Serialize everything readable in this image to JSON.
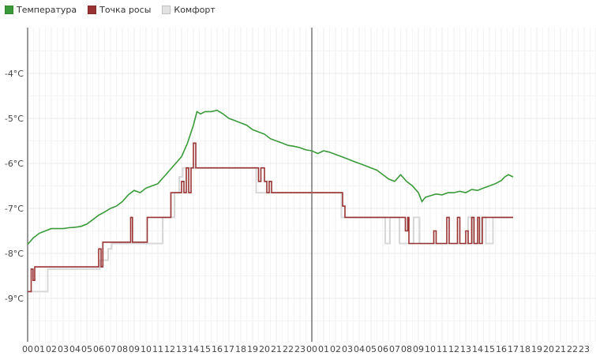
{
  "chart_data": {
    "type": "line",
    "title": "",
    "xlabel": "",
    "ylabel": "",
    "legend_position": "top-left",
    "grid": true,
    "y_ticks": [
      {
        "value": -4,
        "label": "-4°C"
      },
      {
        "value": -5,
        "label": "-5°C"
      },
      {
        "value": -6,
        "label": "-6°C"
      },
      {
        "value": -7,
        "label": "-7°C"
      },
      {
        "value": -8,
        "label": "-8°C"
      },
      {
        "value": -9,
        "label": "-9°C"
      }
    ],
    "ylim": [
      -10,
      -3
    ],
    "x_unit": "hours since start of first day",
    "xlim": [
      0,
      48
    ],
    "x_ticks": [
      "00",
      "01",
      "02",
      "03",
      "04",
      "05",
      "06",
      "07",
      "08",
      "09",
      "10",
      "11",
      "12",
      "13",
      "14",
      "15",
      "16",
      "17",
      "18",
      "19",
      "20",
      "21",
      "22",
      "23",
      "00",
      "01",
      "02",
      "03",
      "04",
      "05",
      "06",
      "07",
      "08",
      "09",
      "10",
      "11",
      "12",
      "13",
      "14",
      "15",
      "16",
      "17",
      "18",
      "19",
      "20",
      "21",
      "22",
      "23"
    ],
    "day_boundaries": [
      0,
      24
    ],
    "series": [
      {
        "name": "Температура",
        "color": "#3a9a3a",
        "kind": "line",
        "points": [
          [
            0,
            -7.8
          ],
          [
            0.5,
            -7.65
          ],
          [
            1,
            -7.55
          ],
          [
            1.5,
            -7.5
          ],
          [
            2,
            -7.45
          ],
          [
            2.5,
            -7.45
          ],
          [
            3,
            -7.45
          ],
          [
            3.5,
            -7.43
          ],
          [
            4,
            -7.42
          ],
          [
            4.5,
            -7.4
          ],
          [
            5,
            -7.35
          ],
          [
            5.5,
            -7.25
          ],
          [
            6,
            -7.15
          ],
          [
            6.5,
            -7.08
          ],
          [
            7,
            -7.0
          ],
          [
            7.5,
            -6.95
          ],
          [
            8,
            -6.85
          ],
          [
            8.5,
            -6.7
          ],
          [
            9,
            -6.6
          ],
          [
            9.5,
            -6.65
          ],
          [
            10,
            -6.55
          ],
          [
            10.5,
            -6.5
          ],
          [
            11,
            -6.45
          ],
          [
            11.5,
            -6.3
          ],
          [
            12,
            -6.15
          ],
          [
            12.5,
            -6.0
          ],
          [
            13,
            -5.85
          ],
          [
            13.5,
            -5.55
          ],
          [
            14,
            -5.15
          ],
          [
            14.3,
            -4.85
          ],
          [
            14.6,
            -4.9
          ],
          [
            15,
            -4.85
          ],
          [
            15.5,
            -4.85
          ],
          [
            16,
            -4.82
          ],
          [
            16.5,
            -4.9
          ],
          [
            17,
            -5.0
          ],
          [
            17.5,
            -5.05
          ],
          [
            18,
            -5.1
          ],
          [
            18.5,
            -5.15
          ],
          [
            19,
            -5.25
          ],
          [
            19.5,
            -5.3
          ],
          [
            20,
            -5.35
          ],
          [
            20.5,
            -5.45
          ],
          [
            21,
            -5.5
          ],
          [
            21.5,
            -5.55
          ],
          [
            22,
            -5.6
          ],
          [
            22.5,
            -5.62
          ],
          [
            23,
            -5.65
          ],
          [
            23.5,
            -5.7
          ],
          [
            24,
            -5.72
          ],
          [
            24.5,
            -5.78
          ],
          [
            25,
            -5.72
          ],
          [
            25.5,
            -5.75
          ],
          [
            26,
            -5.8
          ],
          [
            26.5,
            -5.85
          ],
          [
            27,
            -5.9
          ],
          [
            27.5,
            -5.95
          ],
          [
            28,
            -6.0
          ],
          [
            28.5,
            -6.05
          ],
          [
            29,
            -6.1
          ],
          [
            29.5,
            -6.15
          ],
          [
            30,
            -6.25
          ],
          [
            30.5,
            -6.35
          ],
          [
            31,
            -6.4
          ],
          [
            31.5,
            -6.25
          ],
          [
            32,
            -6.4
          ],
          [
            32.5,
            -6.5
          ],
          [
            33,
            -6.65
          ],
          [
            33.3,
            -6.85
          ],
          [
            33.6,
            -6.75
          ],
          [
            34,
            -6.72
          ],
          [
            34.5,
            -6.68
          ],
          [
            35,
            -6.7
          ],
          [
            35.5,
            -6.65
          ],
          [
            36,
            -6.65
          ],
          [
            36.5,
            -6.62
          ],
          [
            37,
            -6.65
          ],
          [
            37.5,
            -6.58
          ],
          [
            38,
            -6.6
          ],
          [
            38.5,
            -6.55
          ],
          [
            39,
            -6.5
          ],
          [
            39.5,
            -6.45
          ],
          [
            40,
            -6.38
          ],
          [
            40.3,
            -6.3
          ],
          [
            40.6,
            -6.25
          ],
          [
            41,
            -6.3
          ]
        ]
      },
      {
        "name": "Комфорт",
        "color": "#d8d8d8",
        "kind": "step",
        "points": [
          [
            0,
            -8.85
          ],
          [
            1.7,
            -8.85
          ],
          [
            1.7,
            -8.35
          ],
          [
            6.1,
            -8.35
          ],
          [
            6.1,
            -8.15
          ],
          [
            6.8,
            -8.15
          ],
          [
            6.8,
            -7.9
          ],
          [
            7.1,
            -7.9
          ],
          [
            7.1,
            -7.78
          ],
          [
            11.4,
            -7.78
          ],
          [
            11.4,
            -7.2
          ],
          [
            12.4,
            -7.2
          ],
          [
            12.4,
            -6.65
          ],
          [
            12.8,
            -6.65
          ],
          [
            12.8,
            -6.3
          ],
          [
            13.1,
            -6.3
          ],
          [
            13.1,
            -6.1
          ],
          [
            19.3,
            -6.1
          ],
          [
            19.3,
            -6.65
          ],
          [
            26.5,
            -6.65
          ],
          [
            26.5,
            -7.2
          ],
          [
            30.2,
            -7.2
          ],
          [
            30.2,
            -7.78
          ],
          [
            30.6,
            -7.78
          ],
          [
            30.6,
            -7.2
          ],
          [
            31.4,
            -7.2
          ],
          [
            31.4,
            -7.78
          ],
          [
            32.6,
            -7.78
          ],
          [
            32.6,
            -7.2
          ],
          [
            33.1,
            -7.2
          ],
          [
            33.1,
            -7.78
          ],
          [
            37.2,
            -7.78
          ],
          [
            37.2,
            -7.2
          ],
          [
            37.6,
            -7.2
          ],
          [
            37.6,
            -7.78
          ],
          [
            38.3,
            -7.78
          ],
          [
            38.3,
            -7.2
          ],
          [
            38.7,
            -7.2
          ],
          [
            38.7,
            -7.78
          ],
          [
            39.3,
            -7.78
          ],
          [
            39.3,
            -7.2
          ],
          [
            41,
            -7.2
          ]
        ]
      },
      {
        "name": "Точка росы",
        "color": "#993333",
        "kind": "step",
        "points": [
          [
            0,
            -8.85
          ],
          [
            0.3,
            -8.85
          ],
          [
            0.3,
            -8.35
          ],
          [
            0.45,
            -8.35
          ],
          [
            0.45,
            -8.6
          ],
          [
            0.6,
            -8.6
          ],
          [
            0.6,
            -8.3
          ],
          [
            6.0,
            -8.3
          ],
          [
            6.0,
            -7.9
          ],
          [
            6.2,
            -7.9
          ],
          [
            6.2,
            -8.3
          ],
          [
            6.35,
            -8.3
          ],
          [
            6.35,
            -7.75
          ],
          [
            8.7,
            -7.75
          ],
          [
            8.7,
            -7.2
          ],
          [
            8.85,
            -7.2
          ],
          [
            8.85,
            -7.75
          ],
          [
            10.1,
            -7.75
          ],
          [
            10.1,
            -7.2
          ],
          [
            12.1,
            -7.2
          ],
          [
            12.1,
            -6.65
          ],
          [
            13.0,
            -6.65
          ],
          [
            13.0,
            -6.4
          ],
          [
            13.2,
            -6.4
          ],
          [
            13.2,
            -6.65
          ],
          [
            13.4,
            -6.65
          ],
          [
            13.4,
            -6.1
          ],
          [
            13.6,
            -6.1
          ],
          [
            13.6,
            -6.65
          ],
          [
            13.8,
            -6.65
          ],
          [
            13.8,
            -6.1
          ],
          [
            14.0,
            -6.1
          ],
          [
            14.0,
            -5.55
          ],
          [
            14.2,
            -5.55
          ],
          [
            14.2,
            -6.1
          ],
          [
            19.5,
            -6.1
          ],
          [
            19.5,
            -6.4
          ],
          [
            19.7,
            -6.4
          ],
          [
            19.7,
            -6.1
          ],
          [
            20.0,
            -6.1
          ],
          [
            20.0,
            -6.4
          ],
          [
            20.2,
            -6.4
          ],
          [
            20.2,
            -6.65
          ],
          [
            20.4,
            -6.65
          ],
          [
            20.4,
            -6.4
          ],
          [
            20.6,
            -6.4
          ],
          [
            20.6,
            -6.65
          ],
          [
            26.6,
            -6.65
          ],
          [
            26.6,
            -6.95
          ],
          [
            26.8,
            -6.95
          ],
          [
            26.8,
            -7.2
          ],
          [
            31.9,
            -7.2
          ],
          [
            31.9,
            -7.5
          ],
          [
            32.1,
            -7.5
          ],
          [
            32.1,
            -7.2
          ],
          [
            32.2,
            -7.2
          ],
          [
            32.2,
            -7.78
          ],
          [
            34.3,
            -7.78
          ],
          [
            34.3,
            -7.5
          ],
          [
            34.5,
            -7.5
          ],
          [
            34.5,
            -7.78
          ],
          [
            35.4,
            -7.78
          ],
          [
            35.4,
            -7.2
          ],
          [
            35.6,
            -7.2
          ],
          [
            35.6,
            -7.78
          ],
          [
            36.3,
            -7.78
          ],
          [
            36.3,
            -7.2
          ],
          [
            36.5,
            -7.2
          ],
          [
            36.5,
            -7.78
          ],
          [
            37.0,
            -7.78
          ],
          [
            37.0,
            -7.5
          ],
          [
            37.2,
            -7.5
          ],
          [
            37.2,
            -7.78
          ],
          [
            37.5,
            -7.78
          ],
          [
            37.5,
            -7.2
          ],
          [
            37.7,
            -7.2
          ],
          [
            37.7,
            -7.78
          ],
          [
            38.0,
            -7.78
          ],
          [
            38.0,
            -7.2
          ],
          [
            38.15,
            -7.2
          ],
          [
            38.15,
            -7.78
          ],
          [
            38.4,
            -7.78
          ],
          [
            38.4,
            -7.2
          ],
          [
            41,
            -7.2
          ]
        ]
      }
    ]
  }
}
